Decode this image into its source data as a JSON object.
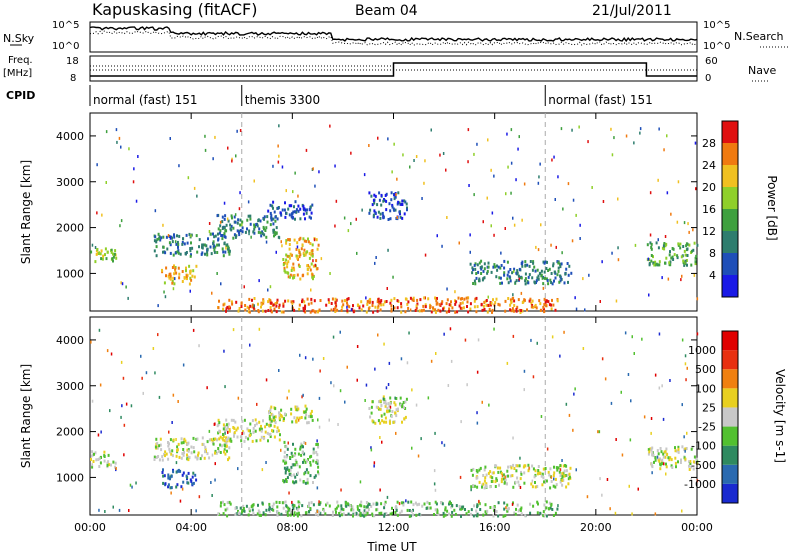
{
  "header": {
    "station": "Kapuskasing (fitACF)",
    "beam": "Beam 04",
    "date": "21/Jul/2011"
  },
  "summary_panels": {
    "nsky_label": "N.Sky",
    "nsearch_label": "N.Search",
    "freq_label_1": "Freq.",
    "freq_label_2": "[MHz]",
    "nave_label": "Nave",
    "cpid_label": "CPID",
    "noise_ticks": [
      "10^5",
      "10^0"
    ],
    "freq_ticks": [
      "18",
      "8"
    ],
    "nave_ticks": [
      "60",
      "0"
    ]
  },
  "cpid_segments": [
    {
      "label": "normal (fast) 151",
      "start_hour": 0
    },
    {
      "label": "themis 3300",
      "start_hour": 6
    },
    {
      "label": "normal (fast) 151",
      "start_hour": 18
    }
  ],
  "colors": {
    "power": [
      "#1a1ae6",
      "#1f4fb8",
      "#2e7d6e",
      "#3fa03f",
      "#8fcf2a",
      "#f0c020",
      "#f07a10",
      "#e01010"
    ],
    "velocity": [
      "#1a2ad0",
      "#2a6ab0",
      "#2f8a60",
      "#52c030",
      "#c8c8c8",
      "#e8d020",
      "#f08010",
      "#e83010",
      "#e00000"
    ]
  },
  "chart_data": [
    {
      "type": "heatmap",
      "name": "power",
      "xlabel": "",
      "ylabel": "Slant Range [km]",
      "colorbar_label": "Power [dB]",
      "colorbar_ticks": [
        "4",
        "8",
        "12",
        "16",
        "20",
        "24",
        "28"
      ],
      "xlim": [
        0,
        24
      ],
      "ylim": [
        180,
        4500
      ],
      "yticks": [
        "1000",
        "2000",
        "3000",
        "4000"
      ],
      "regions": [
        {
          "t0": 0.0,
          "t1": 1.0,
          "r0": 1250,
          "r1": 1600,
          "level": 4
        },
        {
          "t0": 2.8,
          "t1": 4.2,
          "r0": 800,
          "r1": 1200,
          "level": 5
        },
        {
          "t0": 2.5,
          "t1": 5.5,
          "r0": 1400,
          "r1": 1900,
          "level": 2
        },
        {
          "t0": 5.0,
          "t1": 7.5,
          "r0": 1800,
          "r1": 2300,
          "level": 2
        },
        {
          "t0": 7.0,
          "t1": 8.8,
          "r0": 2200,
          "r1": 2600,
          "level": 1
        },
        {
          "t0": 7.6,
          "t1": 9.0,
          "r0": 900,
          "r1": 1800,
          "level": 5
        },
        {
          "t0": 11.0,
          "t1": 12.5,
          "r0": 2200,
          "r1": 2800,
          "level": 1
        },
        {
          "t0": 15.0,
          "t1": 19.0,
          "r0": 800,
          "r1": 1300,
          "level": 2
        },
        {
          "t0": 22.0,
          "t1": 24.0,
          "r0": 1200,
          "r1": 1700,
          "level": 3
        },
        {
          "t0": 5.0,
          "t1": 18.5,
          "r0": 180,
          "r1": 500,
          "level": 6
        }
      ]
    },
    {
      "type": "heatmap",
      "name": "velocity",
      "xlabel": "Time UT",
      "ylabel": "Slant Range [km]",
      "colorbar_label": "Velocity [m s-1]",
      "colorbar_ticks": [
        "1000",
        "500",
        "100",
        "25",
        "-25",
        "-100",
        "-500",
        "-1000"
      ],
      "xlim": [
        0,
        24
      ],
      "ylim": [
        180,
        4500
      ],
      "xticks": [
        "00:00",
        "04:00",
        "08:00",
        "12:00",
        "16:00",
        "20:00",
        "00:00"
      ],
      "yticks": [
        "1000",
        "2000",
        "3000",
        "4000"
      ],
      "regions": [
        {
          "t0": 0.0,
          "t1": 1.0,
          "r0": 1250,
          "r1": 1600,
          "level": 4
        },
        {
          "t0": 2.8,
          "t1": 4.2,
          "r0": 800,
          "r1": 1200,
          "level": 1
        },
        {
          "t0": 2.5,
          "t1": 5.5,
          "r0": 1400,
          "r1": 1900,
          "level": 4
        },
        {
          "t0": 5.0,
          "t1": 7.5,
          "r0": 1800,
          "r1": 2300,
          "level": 4
        },
        {
          "t0": 7.0,
          "t1": 8.8,
          "r0": 2200,
          "r1": 2600,
          "level": 4
        },
        {
          "t0": 7.6,
          "t1": 9.0,
          "r0": 900,
          "r1": 1800,
          "level": 3
        },
        {
          "t0": 11.0,
          "t1": 12.5,
          "r0": 2200,
          "r1": 2800,
          "level": 4
        },
        {
          "t0": 15.0,
          "t1": 19.0,
          "r0": 800,
          "r1": 1300,
          "level": 4
        },
        {
          "t0": 22.0,
          "t1": 24.0,
          "r0": 1200,
          "r1": 1700,
          "level": 4
        },
        {
          "t0": 5.0,
          "t1": 18.5,
          "r0": 180,
          "r1": 500,
          "level": 3
        }
      ]
    }
  ]
}
